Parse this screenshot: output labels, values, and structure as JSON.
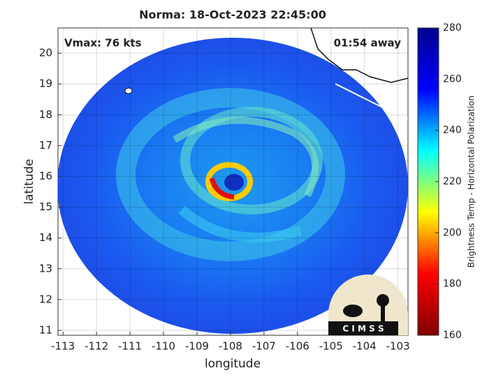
{
  "title": "Norma: 18-Oct-2023 22:45:00",
  "annotations": {
    "vmax": "Vmax: 76 kts",
    "time_away": "01:54 away"
  },
  "x_axis": {
    "label": "longitude",
    "lim": [
      -113.15,
      -102.7
    ],
    "ticks": [
      -113,
      -112,
      -111,
      -110,
      -109,
      -108,
      -107,
      -106,
      -105,
      -104,
      -103
    ]
  },
  "y_axis": {
    "label": "latitude",
    "lim": [
      10.84,
      20.82
    ],
    "ticks": [
      11,
      12,
      13,
      14,
      15,
      16,
      17,
      18,
      19,
      20
    ]
  },
  "grid": true,
  "colorbar": {
    "label": "Brightness Temp - Horizontal Polarization",
    "lim": [
      160,
      280
    ],
    "ticks": [
      160,
      180,
      200,
      220,
      240,
      260,
      280
    ],
    "colors": [
      "#800000",
      "#ff0000",
      "#ffff00",
      "#00ffff",
      "#0000ff",
      "#00008f"
    ]
  },
  "logo": "C I M S S"
}
